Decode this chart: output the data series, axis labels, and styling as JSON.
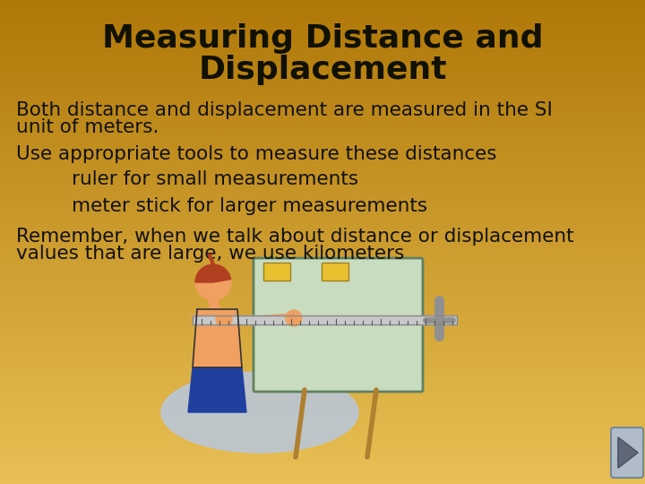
{
  "title_line1": "Measuring Distance and",
  "title_line2": "Displacement",
  "title_fontsize": 26,
  "title_color": "#111100",
  "body_fontsize": 15.5,
  "body_color": "#111111",
  "bullet1_line1": "Both distance and displacement are measured in the SI",
  "bullet1_line2": "unit of meters.",
  "bullet2": "Use appropriate tools to measure these distances",
  "sub_bullet1": "ruler for small measurements",
  "sub_bullet2": "meter stick for larger measurements",
  "bullet3_line1": "Remember, when we talk about distance or displacement",
  "bullet3_line2": "values that are large, we use kilometers",
  "bg_color_top": "#b07808",
  "bg_color_bottom": "#e8c055",
  "skin_color": "#f0a060",
  "hair_color": "#b04020",
  "shorts_color": "#2040a0",
  "board_color": "#c8dcc0",
  "ellipse_color": "#b8c8e0",
  "ruler_color": "#c8c8c8",
  "stick_color": "#909090",
  "note_color": "#e8c030",
  "arrow_bg": "#b0bcc8",
  "arrow_fg": "#606878"
}
